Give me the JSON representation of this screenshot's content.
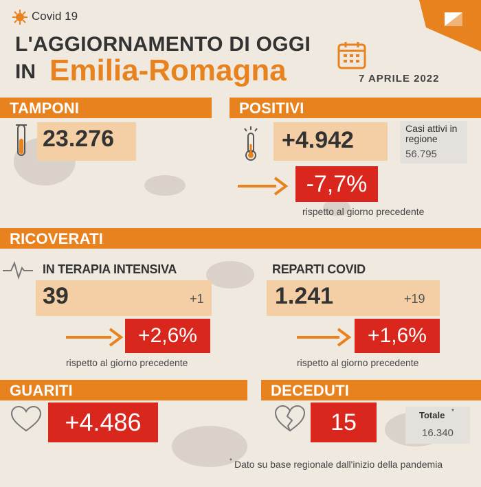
{
  "header": {
    "tag": "Covid 19",
    "title_line1": "L'AGGIORNAMENTO DI OGGI",
    "title_in": "IN",
    "region": "Emilia-Romagna",
    "date": "7 APRILE 2022"
  },
  "tamponi": {
    "label": "TAMPONI",
    "value": "23.276"
  },
  "positivi": {
    "label": "POSITIVI",
    "value": "+4.942",
    "casi_attivi_label": "Casi attivi in regione",
    "casi_attivi_value": "56.795",
    "change": "-7,7%",
    "change_note": "rispetto al giorno precedente"
  },
  "ricoverati": {
    "label": "RICOVERATI",
    "terapia": {
      "label": "IN TERAPIA INTENSIVA",
      "value": "39",
      "delta": "+1",
      "change": "+2,6%",
      "change_note": "rispetto al giorno precedente"
    },
    "reparti": {
      "label": "REPARTI COVID",
      "value": "1.241",
      "delta": "+19",
      "change": "+1,6%",
      "change_note": "rispetto al giorno precedente"
    }
  },
  "guariti": {
    "label": "GUARITI",
    "value": "+4.486"
  },
  "deceduti": {
    "label": "DECEDUTI",
    "value": "15",
    "totale_label": "Totale",
    "totale_value": "16.340"
  },
  "footnote": "Dato su base regionale dall'inizio della pandemia",
  "colors": {
    "orange": "#e8821e",
    "red": "#d9271e",
    "light_orange": "#f4cfa6",
    "background": "#efe9e0"
  },
  "icons": [
    "virus-icon",
    "calendar-icon",
    "test-tube-icon",
    "thermometer-icon",
    "heartbeat-icon",
    "heart-icon",
    "broken-heart-icon",
    "region-logo-icon"
  ]
}
